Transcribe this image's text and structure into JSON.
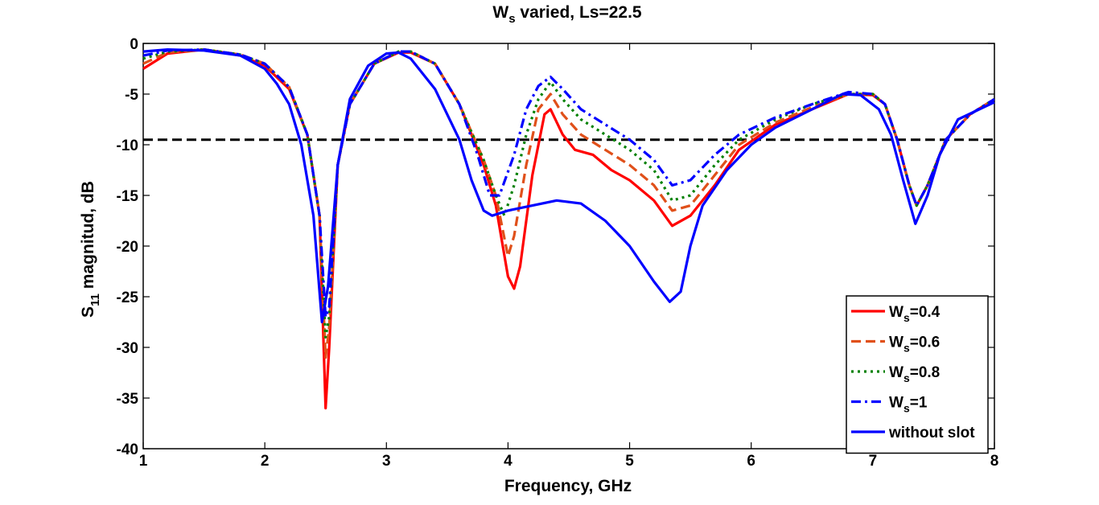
{
  "chart_data": {
    "type": "line",
    "title": {
      "main": "W",
      "sub": "s",
      "rest": " varied, Ls=22.5"
    },
    "xlabel": "Frequency, GHz",
    "ylabel": {
      "main": "S",
      "sub": "11",
      "rest": " magnitud, dB"
    },
    "xlim": [
      1,
      8
    ],
    "ylim": [
      -40,
      0
    ],
    "xticks": [
      1,
      2,
      3,
      4,
      5,
      6,
      7,
      8
    ],
    "yticks": [
      0,
      -5,
      -10,
      -15,
      -20,
      -25,
      -30,
      -35,
      -40
    ],
    "grid": false,
    "legend_position": "bottom-right",
    "reference_line": {
      "y": -9.5,
      "color": "#000000",
      "style": "dashed"
    },
    "series": [
      {
        "name": {
          "main": "W",
          "sub": "s",
          "rest": "=0.4"
        },
        "color": "#ff0000",
        "dash": "solid",
        "points": [
          [
            1,
            -2.5
          ],
          [
            1.2,
            -1
          ],
          [
            1.5,
            -0.6
          ],
          [
            1.8,
            -1.2
          ],
          [
            2.0,
            -2.2
          ],
          [
            2.2,
            -4.5
          ],
          [
            2.35,
            -9
          ],
          [
            2.45,
            -17
          ],
          [
            2.5,
            -36
          ],
          [
            2.53,
            -30
          ],
          [
            2.6,
            -12
          ],
          [
            2.7,
            -6
          ],
          [
            2.9,
            -2
          ],
          [
            3.1,
            -0.9
          ],
          [
            3.2,
            -0.9
          ],
          [
            3.4,
            -2
          ],
          [
            3.6,
            -6
          ],
          [
            3.8,
            -12
          ],
          [
            3.9,
            -16
          ],
          [
            4.0,
            -23
          ],
          [
            4.05,
            -24.2
          ],
          [
            4.1,
            -22
          ],
          [
            4.2,
            -13
          ],
          [
            4.3,
            -7
          ],
          [
            4.35,
            -6.5
          ],
          [
            4.45,
            -9
          ],
          [
            4.55,
            -10.5
          ],
          [
            4.7,
            -11
          ],
          [
            4.85,
            -12.5
          ],
          [
            5.0,
            -13.5
          ],
          [
            5.2,
            -15.5
          ],
          [
            5.35,
            -18
          ],
          [
            5.5,
            -17
          ],
          [
            5.7,
            -14
          ],
          [
            5.9,
            -10.5
          ],
          [
            6.2,
            -8
          ],
          [
            6.5,
            -6.5
          ],
          [
            6.8,
            -5
          ],
          [
            7.0,
            -5.1
          ],
          [
            7.1,
            -6
          ],
          [
            7.2,
            -9.5
          ],
          [
            7.3,
            -14
          ],
          [
            7.36,
            -16
          ],
          [
            7.45,
            -14
          ],
          [
            7.6,
            -9.5
          ],
          [
            7.8,
            -7
          ],
          [
            8.0,
            -5.5
          ]
        ]
      },
      {
        "name": {
          "main": "W",
          "sub": "s",
          "rest": "=0.6"
        },
        "color": "#e0501a",
        "dash": "dashed",
        "points": [
          [
            1,
            -2
          ],
          [
            1.2,
            -0.9
          ],
          [
            1.5,
            -0.6
          ],
          [
            1.8,
            -1.1
          ],
          [
            2.0,
            -2
          ],
          [
            2.2,
            -4.3
          ],
          [
            2.35,
            -9
          ],
          [
            2.45,
            -17
          ],
          [
            2.5,
            -31
          ],
          [
            2.53,
            -28
          ],
          [
            2.6,
            -12
          ],
          [
            2.7,
            -6
          ],
          [
            2.9,
            -2
          ],
          [
            3.1,
            -0.8
          ],
          [
            3.2,
            -0.8
          ],
          [
            3.4,
            -2
          ],
          [
            3.6,
            -6
          ],
          [
            3.8,
            -11.5
          ],
          [
            3.9,
            -15
          ],
          [
            4.0,
            -21
          ],
          [
            4.05,
            -19
          ],
          [
            4.15,
            -12
          ],
          [
            4.25,
            -6.5
          ],
          [
            4.35,
            -5
          ],
          [
            4.45,
            -7
          ],
          [
            4.6,
            -9
          ],
          [
            4.8,
            -10.5
          ],
          [
            5.0,
            -12
          ],
          [
            5.2,
            -14
          ],
          [
            5.35,
            -16.5
          ],
          [
            5.5,
            -16
          ],
          [
            5.7,
            -13
          ],
          [
            5.9,
            -10
          ],
          [
            6.2,
            -7.8
          ],
          [
            6.5,
            -6.3
          ],
          [
            6.8,
            -5
          ],
          [
            7.0,
            -5
          ],
          [
            7.1,
            -6
          ],
          [
            7.2,
            -9.5
          ],
          [
            7.3,
            -14
          ],
          [
            7.36,
            -16
          ],
          [
            7.45,
            -14
          ],
          [
            7.6,
            -9.5
          ],
          [
            7.8,
            -7
          ],
          [
            8.0,
            -5.5
          ]
        ]
      },
      {
        "name": {
          "main": "W",
          "sub": "s",
          "rest": "=0.8"
        },
        "color": "#008000",
        "dash": "dotted",
        "points": [
          [
            1,
            -1.5
          ],
          [
            1.2,
            -0.8
          ],
          [
            1.5,
            -0.6
          ],
          [
            1.8,
            -1.1
          ],
          [
            2.0,
            -2
          ],
          [
            2.2,
            -4.3
          ],
          [
            2.35,
            -9
          ],
          [
            2.45,
            -17
          ],
          [
            2.5,
            -29
          ],
          [
            2.53,
            -27
          ],
          [
            2.6,
            -12
          ],
          [
            2.7,
            -6
          ],
          [
            2.9,
            -2
          ],
          [
            3.1,
            -0.8
          ],
          [
            3.2,
            -0.8
          ],
          [
            3.4,
            -2
          ],
          [
            3.6,
            -6
          ],
          [
            3.8,
            -11.5
          ],
          [
            3.9,
            -15
          ],
          [
            3.97,
            -17
          ],
          [
            4.05,
            -14
          ],
          [
            4.15,
            -9
          ],
          [
            4.25,
            -5.5
          ],
          [
            4.35,
            -3.8
          ],
          [
            4.45,
            -5.5
          ],
          [
            4.6,
            -7.5
          ],
          [
            4.8,
            -9
          ],
          [
            5.0,
            -10.5
          ],
          [
            5.2,
            -12.5
          ],
          [
            5.35,
            -15.5
          ],
          [
            5.5,
            -15
          ],
          [
            5.7,
            -12
          ],
          [
            5.9,
            -9.5
          ],
          [
            6.2,
            -7.5
          ],
          [
            6.5,
            -6
          ],
          [
            6.8,
            -5
          ],
          [
            7.0,
            -5
          ],
          [
            7.1,
            -6
          ],
          [
            7.2,
            -9.5
          ],
          [
            7.3,
            -14
          ],
          [
            7.36,
            -16
          ],
          [
            7.45,
            -14
          ],
          [
            7.6,
            -9.5
          ],
          [
            7.8,
            -7
          ],
          [
            8.0,
            -5.5
          ]
        ]
      },
      {
        "name": {
          "main": "W",
          "sub": "s",
          "rest": "=1"
        },
        "color": "#0000ff",
        "dash": "dashdot",
        "points": [
          [
            1,
            -1.2
          ],
          [
            1.2,
            -0.7
          ],
          [
            1.5,
            -0.6
          ],
          [
            1.8,
            -1.1
          ],
          [
            2.0,
            -2
          ],
          [
            2.2,
            -4.3
          ],
          [
            2.35,
            -9
          ],
          [
            2.45,
            -17
          ],
          [
            2.5,
            -27
          ],
          [
            2.53,
            -26
          ],
          [
            2.6,
            -12
          ],
          [
            2.7,
            -6
          ],
          [
            2.9,
            -2
          ],
          [
            3.1,
            -0.8
          ],
          [
            3.2,
            -0.8
          ],
          [
            3.4,
            -2
          ],
          [
            3.6,
            -6
          ],
          [
            3.75,
            -11
          ],
          [
            3.85,
            -15
          ],
          [
            3.93,
            -15
          ],
          [
            4.05,
            -11
          ],
          [
            4.15,
            -6.5
          ],
          [
            4.25,
            -4.2
          ],
          [
            4.35,
            -3.3
          ],
          [
            4.45,
            -4.5
          ],
          [
            4.6,
            -6.5
          ],
          [
            4.8,
            -8
          ],
          [
            5.0,
            -9.5
          ],
          [
            5.2,
            -11.5
          ],
          [
            5.35,
            -14
          ],
          [
            5.5,
            -13.5
          ],
          [
            5.7,
            -11
          ],
          [
            5.9,
            -9
          ],
          [
            6.2,
            -7.3
          ],
          [
            6.5,
            -6
          ],
          [
            6.8,
            -4.8
          ],
          [
            7.0,
            -5
          ],
          [
            7.1,
            -6
          ],
          [
            7.2,
            -9.5
          ],
          [
            7.3,
            -14
          ],
          [
            7.36,
            -16
          ],
          [
            7.45,
            -14
          ],
          [
            7.6,
            -9.5
          ],
          [
            7.8,
            -7
          ],
          [
            8.0,
            -5.5
          ]
        ]
      },
      {
        "name": {
          "main": "without slot",
          "sub": "",
          "rest": ""
        },
        "color": "#0000ff",
        "dash": "solid",
        "points": [
          [
            1,
            -0.8
          ],
          [
            1.2,
            -0.6
          ],
          [
            1.5,
            -0.7
          ],
          [
            1.8,
            -1.2
          ],
          [
            2.0,
            -2.5
          ],
          [
            2.1,
            -4
          ],
          [
            2.2,
            -6
          ],
          [
            2.3,
            -10
          ],
          [
            2.4,
            -17
          ],
          [
            2.47,
            -27.5
          ],
          [
            2.52,
            -24
          ],
          [
            2.6,
            -12
          ],
          [
            2.7,
            -5.5
          ],
          [
            2.85,
            -2.2
          ],
          [
            3.0,
            -1
          ],
          [
            3.1,
            -0.9
          ],
          [
            3.2,
            -1.5
          ],
          [
            3.4,
            -4.5
          ],
          [
            3.6,
            -9.5
          ],
          [
            3.7,
            -13.5
          ],
          [
            3.8,
            -16.5
          ],
          [
            3.87,
            -17
          ],
          [
            4.0,
            -16.5
          ],
          [
            4.2,
            -16
          ],
          [
            4.4,
            -15.5
          ],
          [
            4.6,
            -15.8
          ],
          [
            4.8,
            -17.5
          ],
          [
            5.0,
            -20
          ],
          [
            5.2,
            -23.5
          ],
          [
            5.33,
            -25.5
          ],
          [
            5.42,
            -24.5
          ],
          [
            5.5,
            -20
          ],
          [
            5.6,
            -16
          ],
          [
            5.8,
            -12.5
          ],
          [
            6.0,
            -10
          ],
          [
            6.2,
            -8.3
          ],
          [
            6.5,
            -6.5
          ],
          [
            6.75,
            -5
          ],
          [
            6.9,
            -5.1
          ],
          [
            7.05,
            -6.5
          ],
          [
            7.15,
            -9
          ],
          [
            7.25,
            -13.5
          ],
          [
            7.35,
            -17.8
          ],
          [
            7.45,
            -15
          ],
          [
            7.55,
            -11
          ],
          [
            7.7,
            -7.5
          ],
          [
            8.0,
            -5.8
          ]
        ]
      }
    ]
  }
}
